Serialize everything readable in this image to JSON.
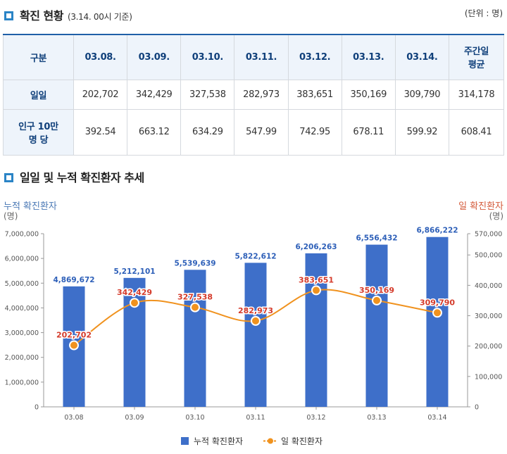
{
  "section1": {
    "title": "확진 현황",
    "subtitle": "(3.14. 00시 기준)",
    "unit": "(단위 : 명)"
  },
  "table": {
    "headers": [
      "구분",
      "03.08.",
      "03.09.",
      "03.10.",
      "03.11.",
      "03.12.",
      "03.13.",
      "03.14.",
      "주간일 평균"
    ],
    "header_last_lines": [
      "주간일",
      "평균"
    ],
    "rows": [
      {
        "label_lines": [
          "일일"
        ],
        "values": [
          "202,702",
          "342,429",
          "327,538",
          "282,973",
          "383,651",
          "350,169",
          "309,790",
          "314,178"
        ]
      },
      {
        "label_lines": [
          "인구 10만",
          "명 당"
        ],
        "values": [
          "392.54",
          "663.12",
          "634.29",
          "547.99",
          "742.95",
          "678.11",
          "599.92",
          "608.41"
        ]
      }
    ]
  },
  "section2": {
    "title": "일일 및 누적 확진환자 추세"
  },
  "colors": {
    "accent_blue": "#2a84c6",
    "bar": "#3e6fc9",
    "line": "#f0921e",
    "line_label": "#d43a2a",
    "bar_label": "#2d5fb8"
  },
  "chart_data": {
    "type": "bar",
    "categories": [
      "03.08",
      "03.09",
      "03.10",
      "03.11",
      "03.12",
      "03.13",
      "03.14"
    ],
    "series": [
      {
        "name": "누적 확진환자",
        "type": "bar",
        "axis": "left",
        "values": [
          4869672,
          5212101,
          5539639,
          5822612,
          6206263,
          6556432,
          6866222
        ],
        "labels": [
          "4,869,672",
          "5,212,101",
          "5,539,639",
          "5,822,612",
          "6,206,263",
          "6,556,432",
          "6,866,222"
        ]
      },
      {
        "name": "일 확진환자",
        "type": "line",
        "axis": "right",
        "values": [
          202702,
          342429,
          327538,
          282973,
          383651,
          350169,
          309790
        ],
        "labels": [
          "202,702",
          "342,429",
          "327,538",
          "282,973",
          "383,651",
          "350,169",
          "309,790"
        ]
      }
    ],
    "y_left": {
      "label": "누적 확진환자",
      "unit": "(명)",
      "range": [
        0,
        7000000
      ],
      "ticks": [
        "0",
        "1,000,000",
        "2,000,000",
        "3,000,000",
        "4,000,000",
        "5,000,000",
        "6,000,000",
        "7,000,000"
      ]
    },
    "y_right": {
      "label": "일 확진환자",
      "unit": "(명)",
      "range": [
        0,
        570000
      ],
      "ticks": [
        "0",
        "100,000",
        "200,000",
        "300,000",
        "400,000",
        "500,000",
        "570,000"
      ],
      "tick_values": [
        0,
        100000,
        200000,
        300000,
        400000,
        500000,
        570000
      ]
    },
    "legend": [
      "누적 확진환자",
      "일 확진환자"
    ],
    "legend_position": "bottom",
    "grid": false
  }
}
